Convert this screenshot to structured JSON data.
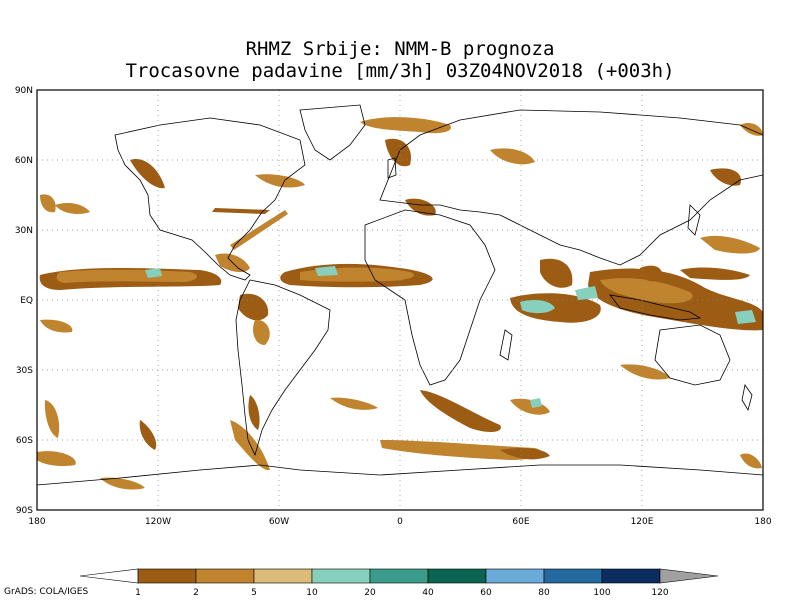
{
  "title": {
    "line1": "RHMZ Srbije: NMM-B prognoza",
    "line2": "Trocasovne padavine [mm/3h] 03Z04NOV2018 (+003h)"
  },
  "axes": {
    "lat_labels": [
      "90N",
      "60N",
      "30N",
      "EQ",
      "30S",
      "60S",
      "90S"
    ],
    "lat_values": [
      90,
      60,
      30,
      0,
      -30,
      -60,
      -90
    ],
    "lon_labels": [
      "180",
      "120W",
      "60W",
      "0",
      "60E",
      "120E",
      "180"
    ],
    "lon_values": [
      -180,
      -120,
      -60,
      0,
      60,
      120,
      180
    ]
  },
  "colorbar": {
    "labels": [
      "1",
      "2",
      "5",
      "10",
      "20",
      "40",
      "60",
      "80",
      "100",
      "120"
    ],
    "colors": [
      "#9c5c14",
      "#c0832e",
      "#dcbc78",
      "#88d0be",
      "#3c9c8c",
      "#0a6450",
      "#6aaad8",
      "#2468a0",
      "#0c2c60"
    ],
    "under_color": "#ffffff",
    "over_color": "#a0a0a0"
  },
  "credit": "GrADS: COLA/IGES",
  "colors": {
    "precip_brown": "#9c5c14",
    "precip_tan": "#c0832e",
    "precip_light": "#dcbc78",
    "precip_teal": "#88d0be"
  }
}
